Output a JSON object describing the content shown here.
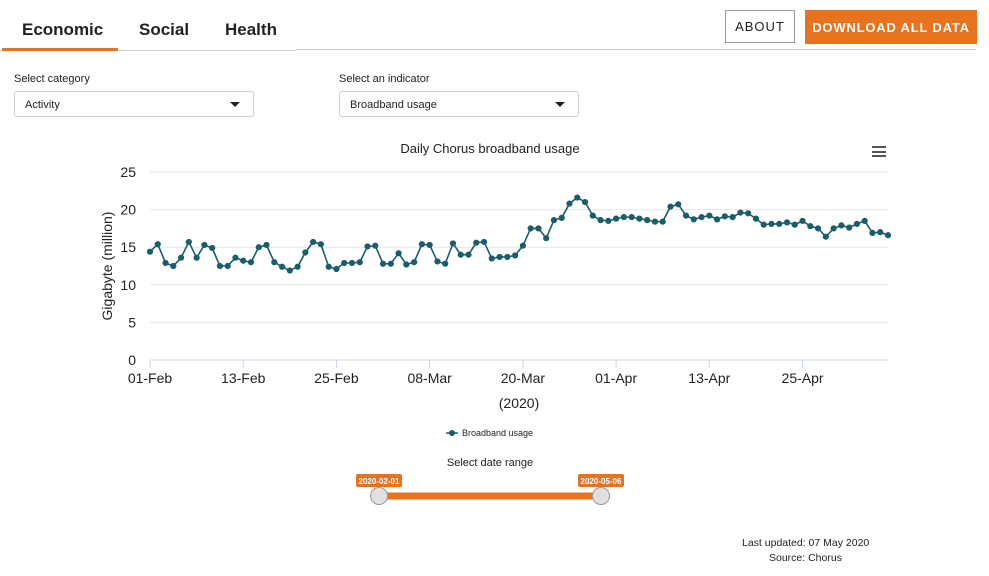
{
  "tabs": [
    {
      "label": "Economic",
      "active": true
    },
    {
      "label": "Social",
      "active": false
    },
    {
      "label": "Health",
      "active": false
    }
  ],
  "buttons": {
    "about": "ABOUT",
    "download": "DOWNLOAD ALL DATA"
  },
  "filters": {
    "category_label": "Select category",
    "category_value": "Activity",
    "indicator_label": "Select an indicator",
    "indicator_value": "Broadband usage"
  },
  "chart_data": {
    "type": "line",
    "title": "Daily Chorus broadband usage",
    "xlabel": "(2020)",
    "ylabel": "Gigabyte (million)",
    "ylim": [
      0,
      25
    ],
    "yticks": [
      "0",
      "5",
      "10",
      "15",
      "20",
      "25"
    ],
    "xticks": [
      "01-Feb",
      "13-Feb",
      "25-Feb",
      "08-Mar",
      "20-Mar",
      "01-Apr",
      "13-Apr",
      "25-Apr"
    ],
    "grid": true,
    "legend": "bottom-center",
    "color": "#1b5e6b",
    "x_start": "2020-02-01",
    "x_end": "2020-05-06",
    "series": [
      {
        "name": "Broadband usage",
        "values": [
          14.4,
          15.4,
          12.9,
          12.5,
          13.6,
          15.7,
          13.6,
          15.3,
          14.9,
          12.5,
          12.5,
          13.6,
          13.2,
          13.0,
          15.0,
          15.3,
          13.0,
          12.4,
          11.9,
          12.4,
          14.3,
          15.7,
          15.4,
          12.4,
          12.1,
          12.9,
          12.9,
          13.0,
          15.1,
          15.2,
          12.8,
          12.8,
          14.2,
          12.7,
          13.0,
          15.4,
          15.3,
          13.1,
          12.8,
          15.5,
          14.0,
          14.0,
          15.6,
          15.7,
          13.5,
          13.7,
          13.7,
          13.9,
          15.2,
          17.5,
          17.5,
          16.2,
          18.6,
          18.9,
          20.8,
          21.6,
          21.0,
          19.2,
          18.6,
          18.5,
          18.8,
          19.0,
          19.0,
          18.8,
          18.6,
          18.4,
          18.4,
          20.4,
          20.7,
          19.2,
          18.7,
          19.0,
          19.2,
          18.7,
          19.1,
          19.0,
          19.6,
          19.5,
          18.8,
          18.0,
          18.1,
          18.1,
          18.3,
          18.0,
          18.5,
          17.8,
          17.5,
          16.4,
          17.5,
          17.9,
          17.6,
          18.1,
          18.5,
          16.9,
          17.0,
          16.6
        ]
      }
    ]
  },
  "range": {
    "title": "Select date range",
    "start": "2020-02-01",
    "end": "2020-05-06",
    "start_frac": 0,
    "end_frac": 1
  },
  "footer": {
    "updated": "Last updated: 07 May 2020",
    "source": "Source: Chorus"
  },
  "colors": {
    "accent": "#e8731e",
    "series": "#1b5e6b"
  }
}
